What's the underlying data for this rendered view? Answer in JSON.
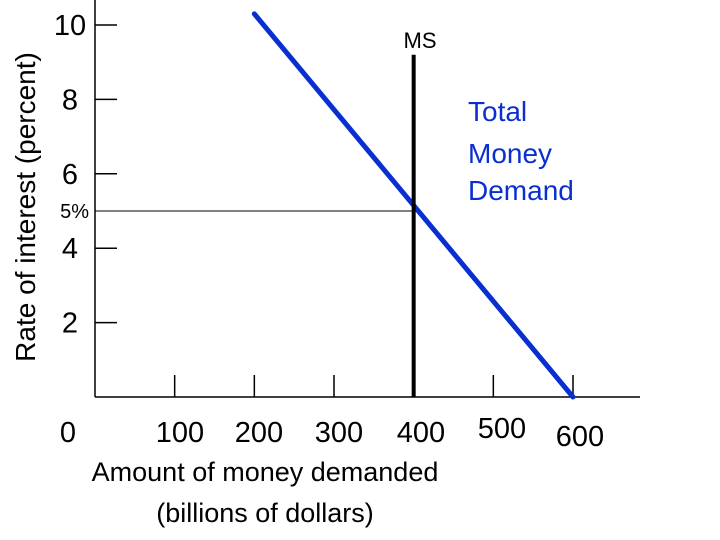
{
  "chart_data": {
    "type": "line",
    "xlabel": "Amount of money demanded",
    "xlabel_line2": "(billions of dollars)",
    "ylabel": "Rate of interest (percent)",
    "xlim": [
      0,
      600
    ],
    "ylim": [
      0,
      10
    ],
    "x_ticks": [
      0,
      100,
      200,
      300,
      400,
      500,
      600
    ],
    "x_tick_labels": [
      "0",
      "100",
      "200",
      "300",
      "400",
      "500",
      "600"
    ],
    "y_ticks": [
      2,
      4,
      6,
      8,
      10
    ],
    "y_tick_labels": [
      "2",
      "4",
      "6",
      "8",
      "10"
    ],
    "annotation": {
      "label": "5%",
      "x": 400,
      "y": 5
    },
    "series": [
      {
        "name": "Total Money Demand",
        "name_lines": [
          "Total",
          "Money",
          "Demand"
        ],
        "color": "#0a2fd0",
        "x": [
          200,
          600
        ],
        "y": [
          10.3,
          0
        ]
      },
      {
        "name": "MS",
        "color": "#000000",
        "type": "vertical",
        "x": [
          400,
          400
        ],
        "y": [
          0,
          9.2
        ]
      }
    ],
    "grid": false
  }
}
